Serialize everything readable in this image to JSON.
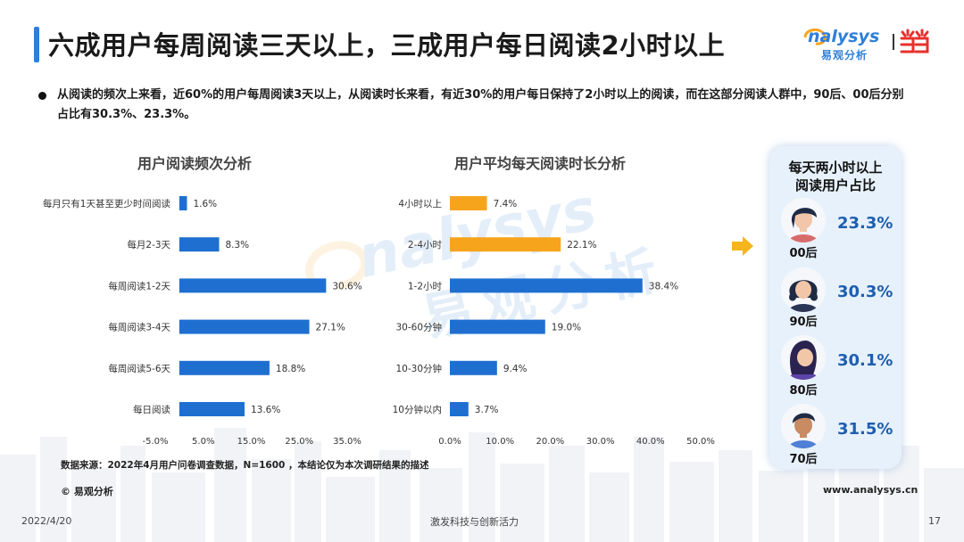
{
  "header": {
    "title": "六成用户每周阅读三天以上，三成用户每日阅读2小时以上",
    "brand_name": "nalysys",
    "brand_cn": "易观分析"
  },
  "summary": "从阅读的频次上来看，近60%的用户每周阅读3天以上，从阅读时长来看，有近30%的用户每日保持了2小时以上的阅读，而在这部分阅读人群中，90后、00后分别占比有30.3%、23.3%。",
  "watermark": {
    "text": "nalysys",
    "cn": "易观分析"
  },
  "colors": {
    "blue": "#1f6fd1",
    "orange": "#f7a41d",
    "accent": "#2f7fd8",
    "highlight_text": "#1e5eb0"
  },
  "chart_data": [
    {
      "type": "bar",
      "orientation": "horizontal",
      "title": "用户阅读频次分析",
      "categories": [
        "每月只有1天甚至更少时间阅读",
        "每月2-3天",
        "每周阅读1-2天",
        "每周阅读3-4天",
        "每周阅读5-6天",
        "每日阅读"
      ],
      "values": [
        1.6,
        8.3,
        30.6,
        27.1,
        18.8,
        13.6
      ],
      "value_labels": [
        "1.6%",
        "8.3%",
        "30.6%",
        "27.1%",
        "18.8%",
        "13.6%"
      ],
      "xlim": [
        -5,
        35
      ],
      "ticks": [
        "-5.0%",
        "5.0%",
        "15.0%",
        "25.0%",
        "35.0%"
      ],
      "tick_values": [
        -5,
        5,
        15,
        25,
        35
      ],
      "color": "#1f6fd1"
    },
    {
      "type": "bar",
      "orientation": "horizontal",
      "title": "用户平均每天阅读时长分析",
      "categories": [
        "4小时以上",
        "2-4小时",
        "1-2小时",
        "30-60分钟",
        "10-30分钟",
        "10分钟以内"
      ],
      "values": [
        7.4,
        22.1,
        38.4,
        19.0,
        9.4,
        3.7
      ],
      "value_labels": [
        "7.4%",
        "22.1%",
        "38.4%",
        "19.0%",
        "9.4%",
        "3.7%"
      ],
      "xlim": [
        0,
        50
      ],
      "ticks": [
        "0.0%",
        "10.0%",
        "20.0%",
        "30.0%",
        "40.0%",
        "50.0%"
      ],
      "tick_values": [
        0,
        10,
        20,
        30,
        40,
        50
      ],
      "colors": [
        "#f7a41d",
        "#f7a41d",
        "#1f6fd1",
        "#1f6fd1",
        "#1f6fd1",
        "#1f6fd1"
      ]
    },
    {
      "type": "table",
      "title": "每天两小时以上阅读用户占比",
      "rows": [
        {
          "age": "00后",
          "value": "23.3%"
        },
        {
          "age": "90后",
          "value": "30.3%"
        },
        {
          "age": "80后",
          "value": "30.1%"
        },
        {
          "age": "70后",
          "value": "31.5%"
        }
      ]
    }
  ],
  "panel": {
    "title_line1": "每天两小时以上",
    "title_line2": "阅读用户占比",
    "rows": [
      {
        "age": "00后",
        "value": "23.3%",
        "icon": "avatar-00-icon"
      },
      {
        "age": "90后",
        "value": "30.3%",
        "icon": "avatar-90-icon"
      },
      {
        "age": "80后",
        "value": "30.1%",
        "icon": "avatar-80-icon"
      },
      {
        "age": "70后",
        "value": "31.5%",
        "icon": "avatar-70-icon"
      }
    ]
  },
  "footer": {
    "source": "数据来源：2022年4月用户问卷调查数据，N=1600 ，本结论仅为本次调研结果的描述",
    "copyright": "© 易观分析",
    "url": "www.analysys.cn",
    "date": "2022/4/20",
    "slogan": "激发科技与创新活力",
    "page": "17"
  }
}
